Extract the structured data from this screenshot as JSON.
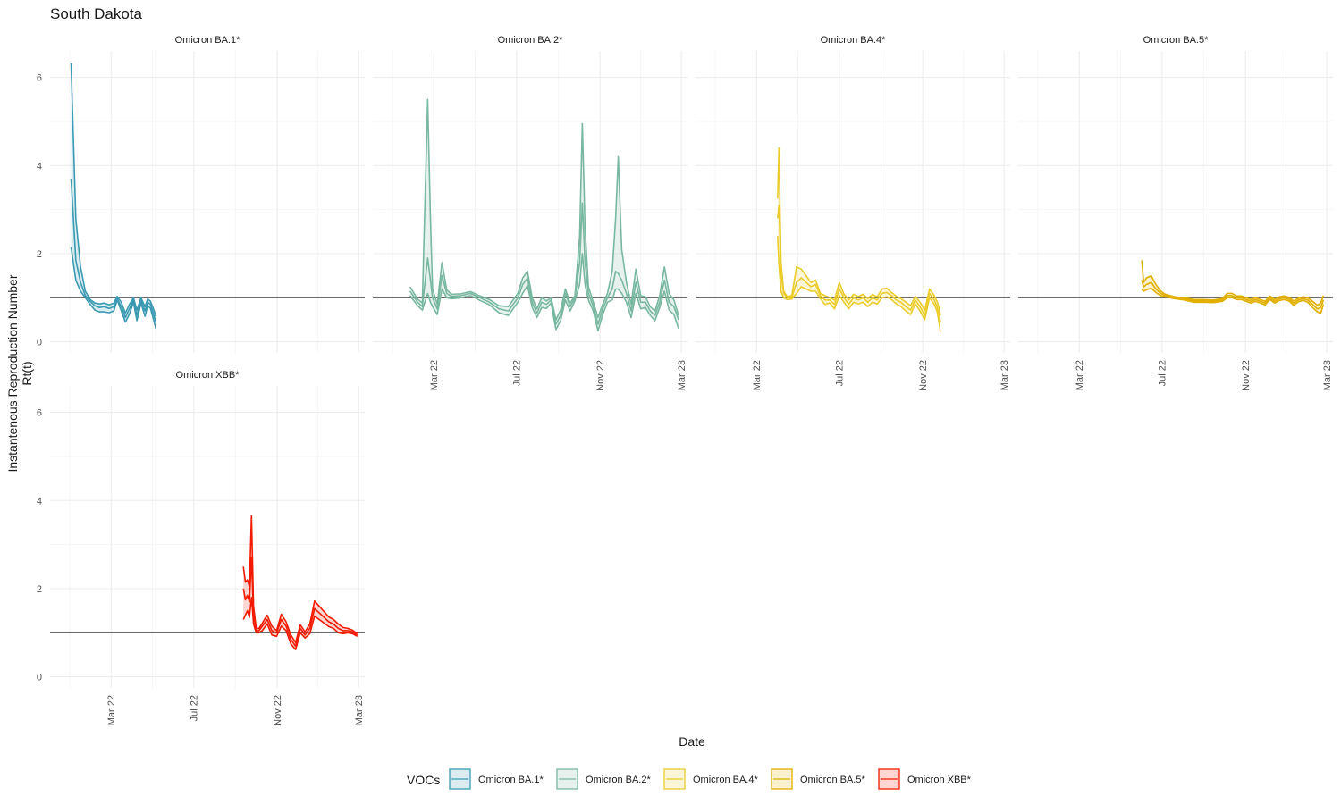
{
  "chart_data": {
    "type": "line",
    "title": "South Dakota",
    "xlabel": "Date",
    "ylabel": "Instantenous Reproduction Number Rt(t)",
    "ylabel_lines": [
      "Instantenous Reproduction Number",
      "Rt(t)"
    ],
    "x_scale": "date",
    "xlim": [
      "2021-12-01",
      "2023-03-10"
    ],
    "ylim": [
      -0.25,
      6.6
    ],
    "y_ticks": [
      0,
      2,
      4,
      6
    ],
    "x_ticks": [
      {
        "date": "2022-03-01",
        "label": "Mar 22"
      },
      {
        "date": "2022-07-01",
        "label": "Jul 22"
      },
      {
        "date": "2022-11-01",
        "label": "Nov 22"
      },
      {
        "date": "2023-03-01",
        "label": "Mar 23"
      }
    ],
    "reference_line": 1,
    "grid": true,
    "legend": {
      "title": "VOCs",
      "position": "bottom",
      "items": [
        "Omicron BA.1*",
        "Omicron BA.2*",
        "Omicron BA.4*",
        "Omicron BA.5*",
        "Omicron XBB*"
      ]
    },
    "panels": [
      {
        "name": "Omicron BA.1*",
        "color": "#3A9AB2",
        "x": [
          "2022-01-01",
          "2022-01-08",
          "2022-01-15",
          "2022-01-22",
          "2022-01-29",
          "2022-02-05",
          "2022-02-12",
          "2022-02-19",
          "2022-02-26",
          "2022-03-05",
          "2022-03-10",
          "2022-03-16",
          "2022-03-22",
          "2022-03-28",
          "2022-04-03",
          "2022-04-08",
          "2022-04-14",
          "2022-04-20",
          "2022-04-24",
          "2022-04-28",
          "2022-05-03",
          "2022-05-06"
        ],
        "mean": [
          3.7,
          1.85,
          1.35,
          1.05,
          0.92,
          0.82,
          0.78,
          0.8,
          0.76,
          0.8,
          0.98,
          0.8,
          0.55,
          0.75,
          0.96,
          0.6,
          0.95,
          0.7,
          0.9,
          0.85,
          0.6,
          0.45
        ],
        "upper": [
          6.32,
          2.8,
          1.7,
          1.15,
          0.96,
          0.88,
          0.86,
          0.88,
          0.84,
          0.88,
          1.03,
          0.9,
          0.65,
          0.85,
          1.0,
          0.72,
          1.0,
          0.8,
          0.97,
          0.92,
          0.72,
          0.58
        ],
        "lower": [
          2.15,
          1.4,
          1.15,
          1.0,
          0.85,
          0.72,
          0.68,
          0.68,
          0.66,
          0.7,
          0.95,
          0.7,
          0.45,
          0.63,
          0.9,
          0.48,
          0.88,
          0.58,
          0.82,
          0.76,
          0.48,
          0.3
        ]
      },
      {
        "name": "Omicron BA.2*",
        "color": "#78B7A0",
        "x": [
          "2022-01-25",
          "2022-02-05",
          "2022-02-12",
          "2022-02-20",
          "2022-02-24",
          "2022-02-27",
          "2022-03-06",
          "2022-03-13",
          "2022-03-20",
          "2022-03-27",
          "2022-04-10",
          "2022-04-24",
          "2022-05-08",
          "2022-05-22",
          "2022-06-05",
          "2022-06-19",
          "2022-07-03",
          "2022-07-10",
          "2022-07-17",
          "2022-07-24",
          "2022-07-31",
          "2022-08-07",
          "2022-08-14",
          "2022-08-21",
          "2022-08-28",
          "2022-09-04",
          "2022-09-11",
          "2022-09-18",
          "2022-09-25",
          "2022-10-02",
          "2022-10-06",
          "2022-10-10",
          "2022-10-15",
          "2022-10-22",
          "2022-10-29",
          "2022-11-05",
          "2022-11-12",
          "2022-11-19",
          "2022-11-24",
          "2022-11-28",
          "2022-12-03",
          "2022-12-10",
          "2022-12-17",
          "2022-12-24",
          "2022-12-31",
          "2023-01-07",
          "2023-01-14",
          "2023-01-21",
          "2023-01-28",
          "2023-02-04",
          "2023-02-11",
          "2023-02-18",
          "2023-02-25"
        ],
        "mean": [
          1.15,
          0.9,
          0.8,
          1.9,
          1.4,
          1.0,
          0.75,
          1.5,
          1.1,
          1.03,
          1.05,
          1.1,
          1.0,
          0.9,
          0.75,
          0.7,
          1.0,
          1.3,
          1.45,
          0.9,
          0.65,
          0.9,
          0.85,
          0.95,
          0.4,
          0.6,
          1.1,
          0.8,
          1.0,
          1.8,
          3.15,
          1.8,
          1.1,
          0.8,
          0.4,
          0.75,
          1.0,
          1.2,
          1.6,
          1.55,
          1.4,
          1.1,
          0.7,
          1.35,
          0.9,
          0.9,
          0.7,
          0.6,
          0.9,
          1.4,
          0.9,
          0.8,
          0.5
        ],
        "upper": [
          1.25,
          0.97,
          0.88,
          5.5,
          2.8,
          1.2,
          0.85,
          1.8,
          1.18,
          1.08,
          1.09,
          1.14,
          1.04,
          0.96,
          0.82,
          0.8,
          1.1,
          1.45,
          1.6,
          1.0,
          0.75,
          1.0,
          0.93,
          1.0,
          0.5,
          0.72,
          1.2,
          0.88,
          1.05,
          2.4,
          4.95,
          2.6,
          1.25,
          0.9,
          0.55,
          0.85,
          1.1,
          1.6,
          2.8,
          4.2,
          2.1,
          1.35,
          0.85,
          1.65,
          1.05,
          1.02,
          0.8,
          0.7,
          1.05,
          1.7,
          1.1,
          0.95,
          0.6
        ],
        "lower": [
          1.05,
          0.82,
          0.72,
          1.1,
          0.9,
          0.8,
          0.62,
          1.2,
          1.0,
          0.98,
          1.0,
          1.05,
          0.94,
          0.84,
          0.66,
          0.6,
          0.9,
          1.1,
          1.28,
          0.78,
          0.55,
          0.78,
          0.76,
          0.88,
          0.28,
          0.48,
          0.95,
          0.7,
          0.93,
          1.3,
          2.0,
          1.3,
          0.95,
          0.7,
          0.25,
          0.62,
          0.9,
          0.95,
          1.2,
          1.2,
          1.1,
          0.9,
          0.55,
          1.1,
          0.75,
          0.78,
          0.6,
          0.48,
          0.78,
          1.15,
          0.72,
          0.62,
          0.3
        ]
      },
      {
        "name": "Omicron BA.4*",
        "color": "#EBCC2A",
        "x": [
          "2022-04-01",
          "2022-04-03",
          "2022-04-06",
          "2022-04-10",
          "2022-04-15",
          "2022-04-22",
          "2022-04-29",
          "2022-05-06",
          "2022-05-13",
          "2022-05-20",
          "2022-05-27",
          "2022-06-03",
          "2022-06-10",
          "2022-06-17",
          "2022-06-24",
          "2022-07-01",
          "2022-07-08",
          "2022-07-15",
          "2022-07-22",
          "2022-07-29",
          "2022-08-05",
          "2022-08-12",
          "2022-08-19",
          "2022-08-26",
          "2022-09-02",
          "2022-09-09",
          "2022-09-16",
          "2022-09-23",
          "2022-09-30",
          "2022-10-07",
          "2022-10-14",
          "2022-10-21",
          "2022-10-28",
          "2022-11-04",
          "2022-11-11",
          "2022-11-18",
          "2022-11-22",
          "2022-11-25",
          "2022-11-27"
        ],
        "mean": [
          2.8,
          3.1,
          1.5,
          1.1,
          1.0,
          1.0,
          1.35,
          1.45,
          1.35,
          1.25,
          1.3,
          1.05,
          0.95,
          0.95,
          0.85,
          1.2,
          1.0,
          0.85,
          1.0,
          0.95,
          1.0,
          0.9,
          1.0,
          0.95,
          1.1,
          1.12,
          1.05,
          0.95,
          0.9,
          0.8,
          0.72,
          0.95,
          0.8,
          0.6,
          1.1,
          0.95,
          0.8,
          0.65,
          0.45
        ],
        "upper": [
          3.25,
          4.4,
          1.8,
          1.15,
          1.03,
          1.05,
          1.7,
          1.65,
          1.5,
          1.35,
          1.4,
          1.1,
          1.05,
          1.0,
          0.95,
          1.35,
          1.08,
          0.95,
          1.08,
          1.03,
          1.08,
          0.98,
          1.08,
          1.02,
          1.2,
          1.22,
          1.12,
          1.03,
          0.98,
          0.9,
          0.82,
          1.03,
          0.9,
          0.72,
          1.2,
          1.05,
          0.92,
          0.78,
          0.6
        ],
        "lower": [
          2.4,
          1.75,
          1.15,
          1.0,
          0.96,
          0.97,
          1.1,
          1.25,
          1.2,
          1.15,
          1.15,
          0.98,
          0.85,
          0.88,
          0.75,
          1.05,
          0.9,
          0.75,
          0.9,
          0.86,
          0.9,
          0.8,
          0.9,
          0.86,
          1.0,
          1.02,
          0.96,
          0.86,
          0.8,
          0.7,
          0.62,
          0.86,
          0.7,
          0.5,
          1.0,
          0.85,
          0.7,
          0.45,
          0.22
        ]
      },
      {
        "name": "Omicron BA.5*",
        "color": "#E1AF00",
        "x": [
          "2022-06-01",
          "2022-06-04",
          "2022-06-08",
          "2022-06-15",
          "2022-06-22",
          "2022-06-29",
          "2022-07-06",
          "2022-07-20",
          "2022-08-03",
          "2022-08-17",
          "2022-08-31",
          "2022-09-14",
          "2022-09-28",
          "2022-10-05",
          "2022-10-12",
          "2022-10-19",
          "2022-10-26",
          "2022-11-02",
          "2022-11-09",
          "2022-11-16",
          "2022-11-23",
          "2022-11-30",
          "2022-12-07",
          "2022-12-14",
          "2022-12-21",
          "2022-12-28",
          "2023-01-04",
          "2023-01-11",
          "2023-01-18",
          "2023-01-25",
          "2023-02-01",
          "2023-02-08",
          "2023-02-15",
          "2023-02-20",
          "2023-02-24"
        ],
        "mean": [
          1.4,
          1.25,
          1.3,
          1.35,
          1.2,
          1.1,
          1.05,
          1.0,
          0.98,
          0.93,
          0.93,
          0.92,
          0.95,
          1.05,
          1.05,
          1.0,
          1.0,
          0.96,
          0.92,
          0.96,
          0.92,
          0.88,
          1.0,
          0.92,
          0.98,
          1.0,
          0.97,
          0.88,
          0.95,
          0.98,
          0.95,
          0.85,
          0.75,
          0.78,
          0.95
        ],
        "upper": [
          1.85,
          1.35,
          1.45,
          1.5,
          1.3,
          1.15,
          1.08,
          1.02,
          1.0,
          0.96,
          0.96,
          0.95,
          0.98,
          1.1,
          1.1,
          1.04,
          1.04,
          1.0,
          0.96,
          1.0,
          0.96,
          0.92,
          1.04,
          0.96,
          1.02,
          1.04,
          1.01,
          0.93,
          0.99,
          1.02,
          1.0,
          0.92,
          0.83,
          0.88,
          1.05
        ],
        "lower": [
          1.2,
          1.15,
          1.18,
          1.22,
          1.12,
          1.05,
          1.02,
          0.98,
          0.95,
          0.9,
          0.9,
          0.89,
          0.92,
          1.0,
          1.0,
          0.96,
          0.96,
          0.92,
          0.88,
          0.92,
          0.88,
          0.84,
          0.96,
          0.88,
          0.94,
          0.96,
          0.93,
          0.83,
          0.91,
          0.94,
          0.9,
          0.78,
          0.68,
          0.65,
          0.85
        ]
      },
      {
        "name": "Omicron XBB*",
        "color": "#F21A00",
        "x": [
          "2022-09-12",
          "2022-09-15",
          "2022-09-18",
          "2022-09-21",
          "2022-09-24",
          "2022-09-27",
          "2022-10-01",
          "2022-10-05",
          "2022-10-10",
          "2022-10-17",
          "2022-10-24",
          "2022-10-31",
          "2022-11-07",
          "2022-11-14",
          "2022-11-21",
          "2022-11-28",
          "2022-12-05",
          "2022-12-12",
          "2022-12-19",
          "2022-12-26",
          "2023-01-02",
          "2023-01-09",
          "2023-01-16",
          "2023-01-23",
          "2023-01-30",
          "2023-02-06",
          "2023-02-13",
          "2023-02-20",
          "2023-02-27"
        ],
        "mean": [
          2.0,
          1.75,
          1.85,
          1.7,
          2.7,
          1.4,
          1.05,
          1.05,
          1.15,
          1.3,
          1.05,
          1.0,
          1.3,
          1.15,
          0.85,
          0.7,
          1.1,
          0.95,
          1.1,
          1.55,
          1.45,
          1.35,
          1.25,
          1.2,
          1.1,
          1.05,
          1.05,
          1.02,
          0.95
        ],
        "upper": [
          2.5,
          2.15,
          2.2,
          2.05,
          3.65,
          1.6,
          1.1,
          1.1,
          1.22,
          1.4,
          1.15,
          1.05,
          1.42,
          1.25,
          0.95,
          0.78,
          1.18,
          1.02,
          1.2,
          1.72,
          1.6,
          1.48,
          1.36,
          1.3,
          1.2,
          1.12,
          1.1,
          1.06,
          0.98
        ],
        "lower": [
          1.3,
          1.4,
          1.5,
          1.35,
          1.8,
          1.2,
          1.0,
          1.0,
          1.05,
          1.2,
          0.95,
          0.92,
          1.15,
          1.05,
          0.75,
          0.62,
          1.0,
          0.88,
          0.98,
          1.38,
          1.3,
          1.22,
          1.14,
          1.1,
          1.0,
          0.98,
          1.0,
          0.98,
          0.92
        ]
      }
    ]
  }
}
